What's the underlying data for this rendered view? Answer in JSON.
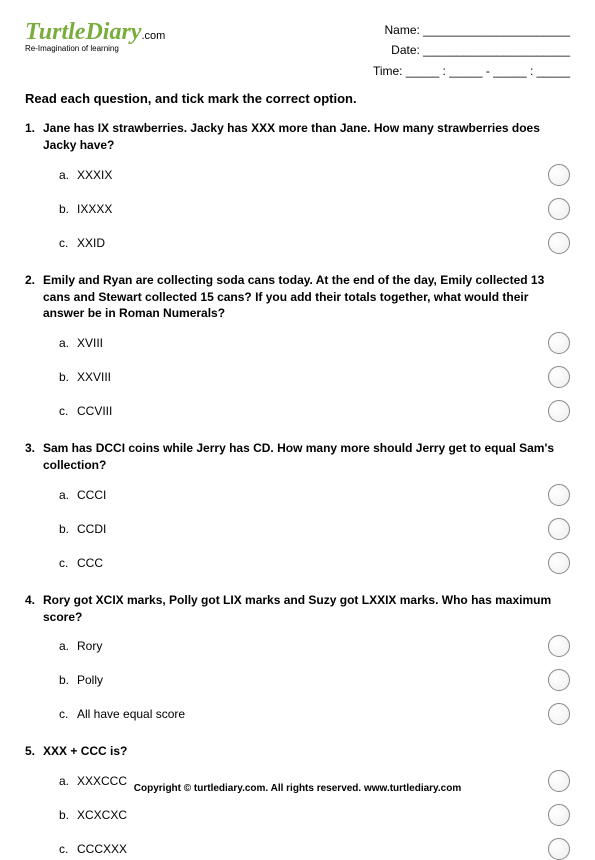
{
  "header": {
    "logo_main": "TurtleDiary",
    "logo_suffix": ".com",
    "tagline": "Re-Imagination of learning",
    "name_label": "Name: ______________________",
    "date_label": "Date: ______________________",
    "time_label": "Time: _____ : _____ - _____ : _____"
  },
  "instructions": "Read each question, and tick mark the correct option.",
  "questions": [
    {
      "num": "1.",
      "text": "Jane has IX strawberries. Jacky has XXX more than Jane. How many strawberries does Jacky have?",
      "options": [
        {
          "letter": "a.",
          "text": "XXXIX"
        },
        {
          "letter": "b.",
          "text": "IXXXX"
        },
        {
          "letter": "c.",
          "text": "XXID"
        }
      ]
    },
    {
      "num": "2.",
      "text": "Emily and Ryan are collecting soda cans today. At the end of the day, Emily collected 13 cans and Stewart collected 15 cans? If you add their totals together, what would their answer be in Roman Numerals?",
      "options": [
        {
          "letter": "a.",
          "text": "XVIII"
        },
        {
          "letter": "b.",
          "text": "XXVIII"
        },
        {
          "letter": "c.",
          "text": "CCVIII"
        }
      ]
    },
    {
      "num": "3.",
      "text": "Sam has DCCI coins while Jerry has CD. How many more should Jerry get to equal Sam's collection?",
      "options": [
        {
          "letter": "a.",
          "text": "CCCI"
        },
        {
          "letter": "b.",
          "text": "CCDI"
        },
        {
          "letter": "c.",
          "text": "CCC"
        }
      ]
    },
    {
      "num": "4.",
      "text": "Rory got XCIX marks, Polly got LIX marks and Suzy got LXXIX marks. Who has maximum score?",
      "options": [
        {
          "letter": "a.",
          "text": "Rory"
        },
        {
          "letter": "b.",
          "text": "Polly"
        },
        {
          "letter": "c.",
          "text": "All have equal score"
        }
      ]
    },
    {
      "num": "5.",
      "text": "XXX + CCC is?",
      "options": [
        {
          "letter": "a.",
          "text": "XXXCCC"
        },
        {
          "letter": "b.",
          "text": "XCXCXC"
        },
        {
          "letter": "c.",
          "text": "CCCXXX"
        }
      ]
    }
  ],
  "footer": "Copyright © turtlediary.com. All rights reserved. www.turtlediary.com"
}
